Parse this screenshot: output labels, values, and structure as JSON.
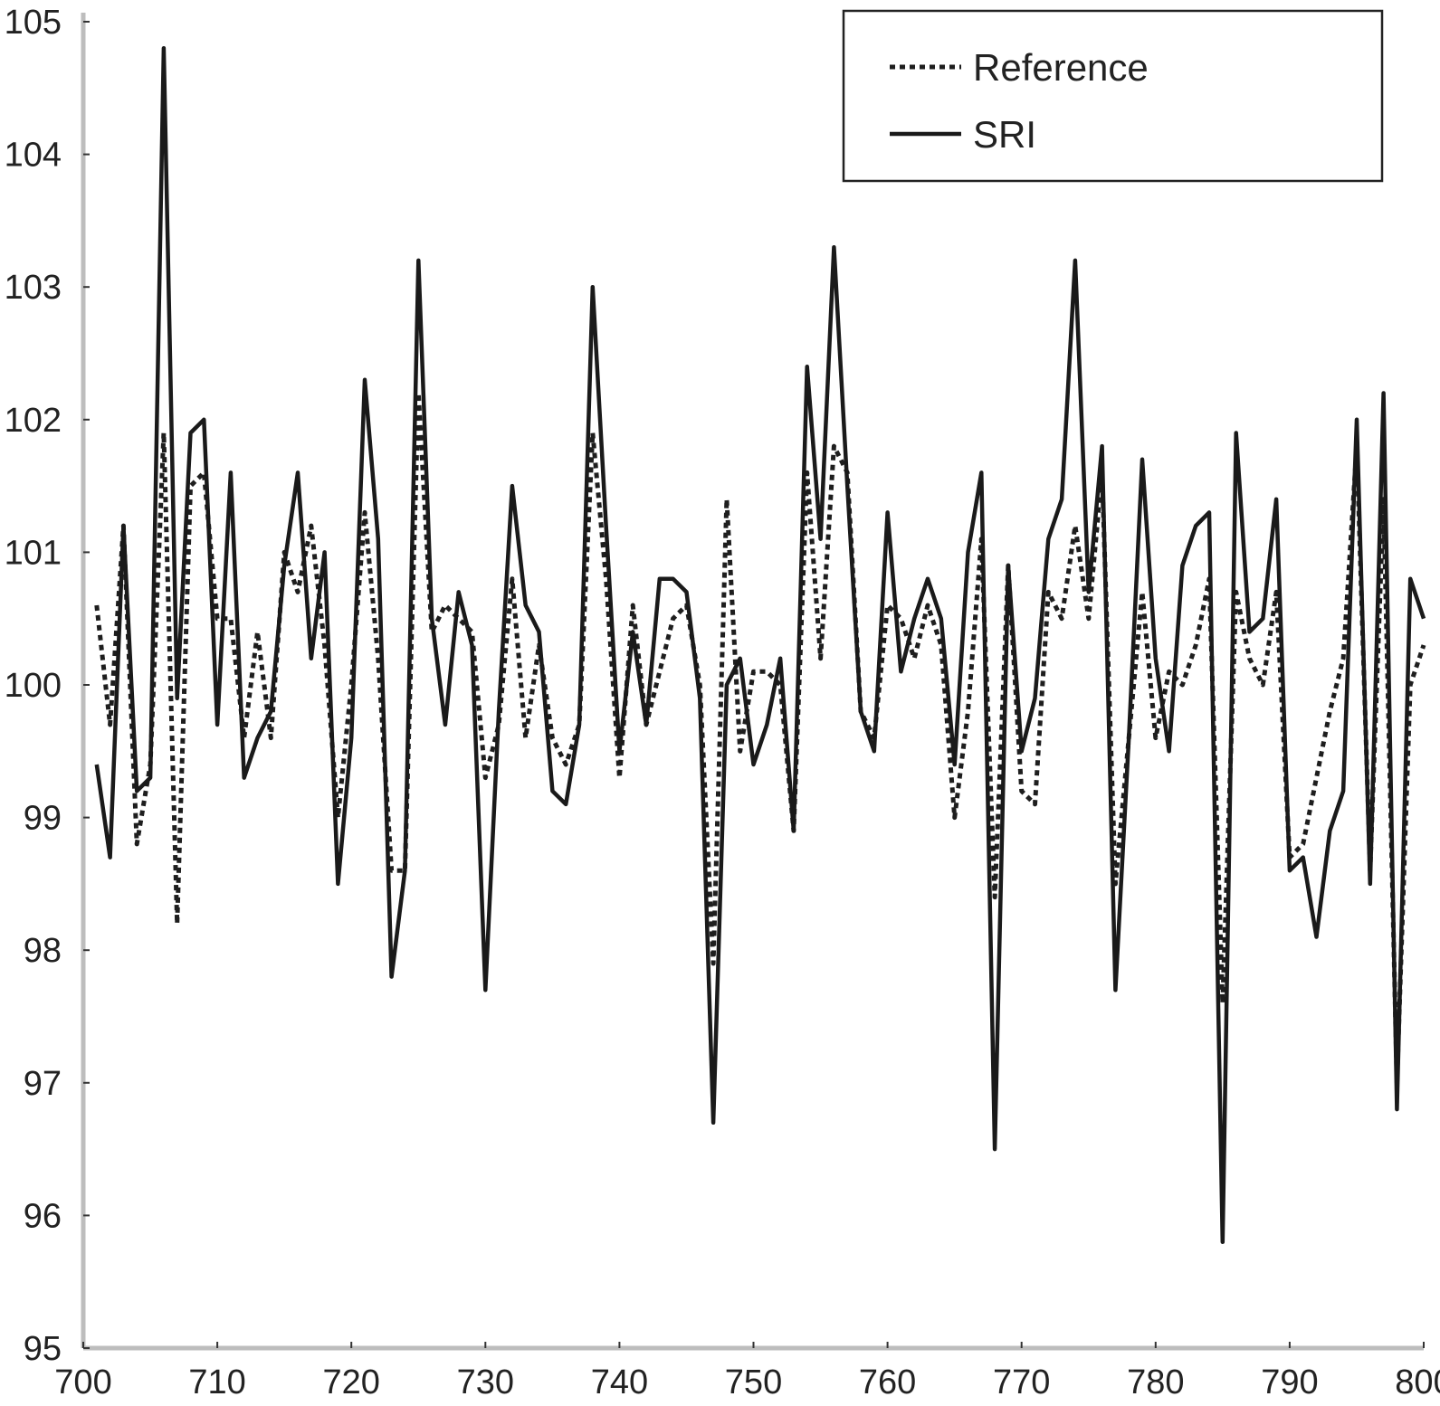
{
  "chart_data": {
    "type": "line",
    "title": "",
    "xlabel": "",
    "ylabel": "",
    "xlim": [
      700,
      800
    ],
    "ylim": [
      95,
      105
    ],
    "xticks": [
      700,
      710,
      720,
      730,
      740,
      750,
      760,
      770,
      780,
      790,
      800
    ],
    "yticks": [
      95,
      96,
      97,
      98,
      99,
      100,
      101,
      102,
      103,
      104,
      105
    ],
    "legend_position": "top-right",
    "x": [
      701,
      702,
      703,
      704,
      705,
      706,
      707,
      708,
      709,
      710,
      711,
      712,
      713,
      714,
      715,
      716,
      717,
      718,
      719,
      720,
      721,
      722,
      723,
      724,
      725,
      726,
      727,
      728,
      729,
      730,
      731,
      732,
      733,
      734,
      735,
      736,
      737,
      738,
      739,
      740,
      741,
      742,
      743,
      744,
      745,
      746,
      747,
      748,
      749,
      750,
      751,
      752,
      753,
      754,
      755,
      756,
      757,
      758,
      759,
      760,
      761,
      762,
      763,
      764,
      765,
      766,
      767,
      768,
      769,
      770,
      771,
      772,
      773,
      774,
      775,
      776,
      777,
      778,
      779,
      780,
      781,
      782,
      783,
      784,
      785,
      786,
      787,
      788,
      789,
      790,
      791,
      792,
      793,
      794,
      795,
      796,
      797,
      798,
      799,
      800
    ],
    "series": [
      {
        "name": "Reference",
        "style": "dotted",
        "values": [
          100.6,
          99.7,
          101.2,
          98.8,
          99.4,
          101.9,
          98.2,
          101.5,
          101.6,
          100.5,
          100.5,
          99.6,
          100.4,
          99.6,
          101.0,
          100.7,
          101.2,
          100.3,
          99.0,
          100.0,
          101.3,
          100.2,
          98.6,
          98.6,
          102.2,
          100.4,
          100.6,
          100.5,
          100.4,
          99.3,
          99.7,
          100.8,
          99.6,
          100.3,
          99.6,
          99.4,
          99.7,
          101.9,
          100.8,
          99.3,
          100.6,
          99.7,
          100.1,
          100.5,
          100.6,
          100.0,
          97.9,
          101.4,
          99.5,
          100.1,
          100.1,
          100.0,
          98.9,
          101.6,
          100.2,
          101.8,
          101.6,
          99.8,
          99.6,
          100.6,
          100.5,
          100.2,
          100.6,
          100.3,
          99.0,
          99.8,
          101.1,
          98.4,
          100.9,
          99.2,
          99.1,
          100.7,
          100.5,
          101.2,
          100.5,
          101.6,
          98.5,
          99.6,
          100.7,
          99.6,
          100.1,
          100.0,
          100.3,
          100.8,
          97.6,
          100.7,
          100.2,
          100.0,
          100.7,
          98.7,
          98.8,
          99.3,
          99.8,
          100.2,
          101.8,
          98.6,
          101.4,
          97.0,
          100.0,
          100.3
        ]
      },
      {
        "name": "SRI",
        "style": "solid",
        "values": [
          99.4,
          98.7,
          101.2,
          99.2,
          99.3,
          104.8,
          99.9,
          101.9,
          102.0,
          99.7,
          101.6,
          99.3,
          99.6,
          99.8,
          100.9,
          101.6,
          100.2,
          101.0,
          98.5,
          99.6,
          102.3,
          101.1,
          97.8,
          98.6,
          103.2,
          100.5,
          99.7,
          100.7,
          100.3,
          97.7,
          99.8,
          101.5,
          100.6,
          100.4,
          99.2,
          99.1,
          99.7,
          103.0,
          101.2,
          99.5,
          100.4,
          99.7,
          100.8,
          100.8,
          100.7,
          99.9,
          96.7,
          100.0,
          100.2,
          99.4,
          99.7,
          100.2,
          98.9,
          102.4,
          101.1,
          103.3,
          101.5,
          99.8,
          99.5,
          101.3,
          100.1,
          100.5,
          100.8,
          100.5,
          99.4,
          101.0,
          101.6,
          96.5,
          100.9,
          99.5,
          99.9,
          101.1,
          101.4,
          103.2,
          100.7,
          101.8,
          97.7,
          99.6,
          101.7,
          100.2,
          99.5,
          100.9,
          101.2,
          101.3,
          95.8,
          101.9,
          100.4,
          100.5,
          101.4,
          98.6,
          98.7,
          98.1,
          98.9,
          99.2,
          102.0,
          98.5,
          102.2,
          96.8,
          100.8,
          100.5
        ]
      }
    ]
  }
}
